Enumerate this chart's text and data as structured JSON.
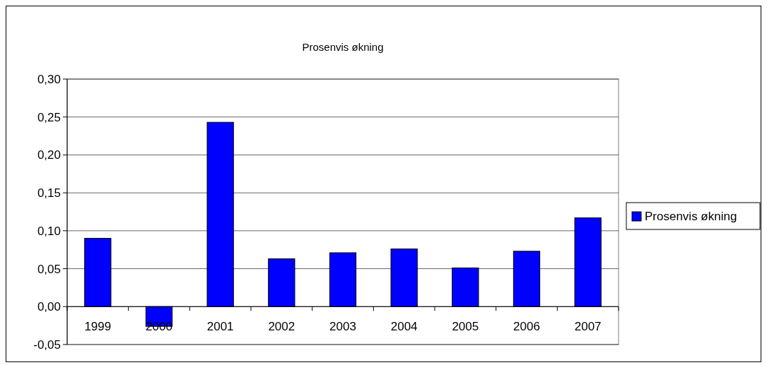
{
  "chart_data": {
    "type": "bar",
    "title": "Prosenvis økning",
    "categories": [
      "1999",
      "2000",
      "2001",
      "2002",
      "2003",
      "2004",
      "2005",
      "2006",
      "2007"
    ],
    "series": [
      {
        "name": "Prosenvis økning",
        "color": "#0000ff",
        "values": [
          0.09,
          -0.026,
          0.243,
          0.063,
          0.071,
          0.076,
          0.051,
          0.073,
          0.117
        ]
      }
    ],
    "ylim": [
      -0.05,
      0.3
    ],
    "yticks": [
      {
        "value": -0.05,
        "label": "-0,05"
      },
      {
        "value": 0,
        "label": "0,00"
      },
      {
        "value": 0.05,
        "label": "0,05"
      },
      {
        "value": 0.1,
        "label": "0,10"
      },
      {
        "value": 0.15,
        "label": "0,15"
      },
      {
        "value": 0.2,
        "label": "0,20"
      },
      {
        "value": 0.25,
        "label": "0,25"
      },
      {
        "value": 0.3,
        "label": "0,30"
      }
    ],
    "grid": "y",
    "legend": "right"
  }
}
